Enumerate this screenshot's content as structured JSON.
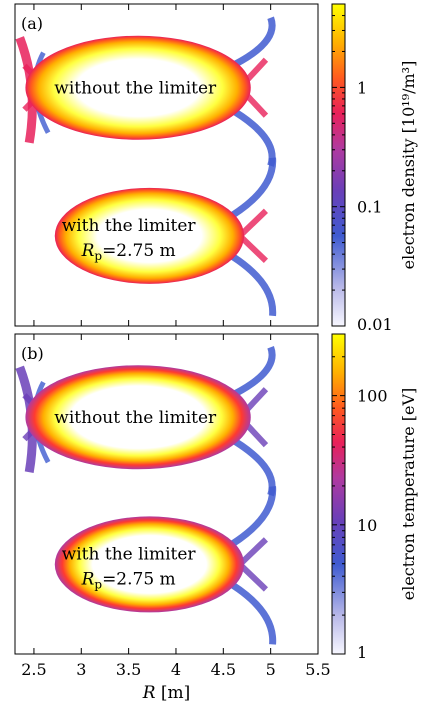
{
  "figure": {
    "panels": [
      {
        "id": "a",
        "panel_label": "(a)",
        "upper_label": "without the limiter",
        "lower_label_line1": "with the limiter",
        "lower_label_rp_symbol": "R",
        "lower_label_rp_sub": "p",
        "lower_label_rp_value": "=2.75 m",
        "colorbar_label": "electron density [10¹⁹/m³]",
        "colorbar_ticks": [
          "1",
          "0.1",
          "0.01"
        ]
      },
      {
        "id": "b",
        "panel_label": "(b)",
        "upper_label": "without the limiter",
        "lower_label_line1": "with the limiter",
        "lower_label_rp_symbol": "R",
        "lower_label_rp_sub": "p",
        "lower_label_rp_value": "=2.75 m",
        "colorbar_label": "electron temperature [eV]",
        "colorbar_ticks": [
          "100",
          "10",
          "1"
        ]
      }
    ],
    "x_axis": {
      "label_symbol": "R",
      "label_unit": " [m]",
      "tick_labels": [
        "2.5",
        "3",
        "3.5",
        "4",
        "4.5",
        "5",
        "5.5"
      ]
    },
    "colormap": [
      "#f7f7ff",
      "#b8b8e8",
      "#3f5bd0",
      "#6a3fb8",
      "#b03aa0",
      "#e8205a",
      "#ff5a1e",
      "#ffb000",
      "#ffff00"
    ]
  },
  "chart_data": [
    {
      "type": "heatmap",
      "title": "(a)",
      "xlabel": "R [m]",
      "xlim": [
        2.3,
        5.5
      ],
      "xticks": [
        2.5,
        3,
        3.5,
        4,
        4.5,
        5,
        5.5
      ],
      "colorbar": {
        "label": "electron density [10^19/m^3]",
        "scale": "log",
        "range": [
          0.01,
          5
        ],
        "ticks": [
          1,
          0.1,
          0.01
        ]
      },
      "regions": [
        {
          "name": "without the limiter",
          "R_min": 2.35,
          "R_max": 5.05,
          "peak_value": 3
        },
        {
          "name": "with the limiter, Rp=2.75 m",
          "R_min": 2.75,
          "R_max": 5.05,
          "peak_value": 3
        }
      ]
    },
    {
      "type": "heatmap",
      "title": "(b)",
      "xlabel": "R [m]",
      "xlim": [
        2.3,
        5.5
      ],
      "xticks": [
        2.5,
        3,
        3.5,
        4,
        4.5,
        5,
        5.5
      ],
      "colorbar": {
        "label": "electron temperature [eV]",
        "scale": "log",
        "range": [
          1,
          300
        ],
        "ticks": [
          100,
          10,
          1
        ]
      },
      "regions": [
        {
          "name": "without the limiter",
          "R_min": 2.35,
          "R_max": 5.05,
          "peak_value": 300
        },
        {
          "name": "with the limiter, Rp=2.75 m",
          "R_min": 2.75,
          "R_max": 5.05,
          "peak_value": 300
        }
      ]
    }
  ]
}
